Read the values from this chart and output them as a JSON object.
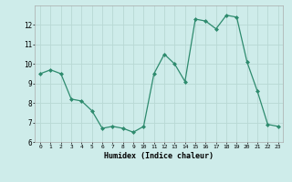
{
  "x": [
    0,
    1,
    2,
    3,
    4,
    5,
    6,
    7,
    8,
    9,
    10,
    11,
    12,
    13,
    14,
    15,
    16,
    17,
    18,
    19,
    20,
    21,
    22,
    23
  ],
  "y": [
    9.5,
    9.7,
    9.5,
    8.2,
    8.1,
    7.6,
    6.7,
    6.8,
    6.7,
    6.5,
    6.8,
    9.5,
    10.5,
    10.0,
    9.1,
    12.3,
    12.2,
    11.8,
    12.5,
    12.4,
    10.1,
    8.6,
    6.9,
    6.8
  ],
  "xlabel": "Humidex (Indice chaleur)",
  "ylim": [
    6,
    13
  ],
  "xlim": [
    -0.5,
    23.5
  ],
  "yticks": [
    6,
    7,
    8,
    9,
    10,
    11,
    12
  ],
  "xticks": [
    0,
    1,
    2,
    3,
    4,
    5,
    6,
    7,
    8,
    9,
    10,
    11,
    12,
    13,
    14,
    15,
    16,
    17,
    18,
    19,
    20,
    21,
    22,
    23
  ],
  "line_color": "#2e8b6e",
  "marker_color": "#2e8b6e",
  "bg_color": "#ceecea",
  "grid_color": "#b8d8d4",
  "spine_color": "#aaaaaa"
}
